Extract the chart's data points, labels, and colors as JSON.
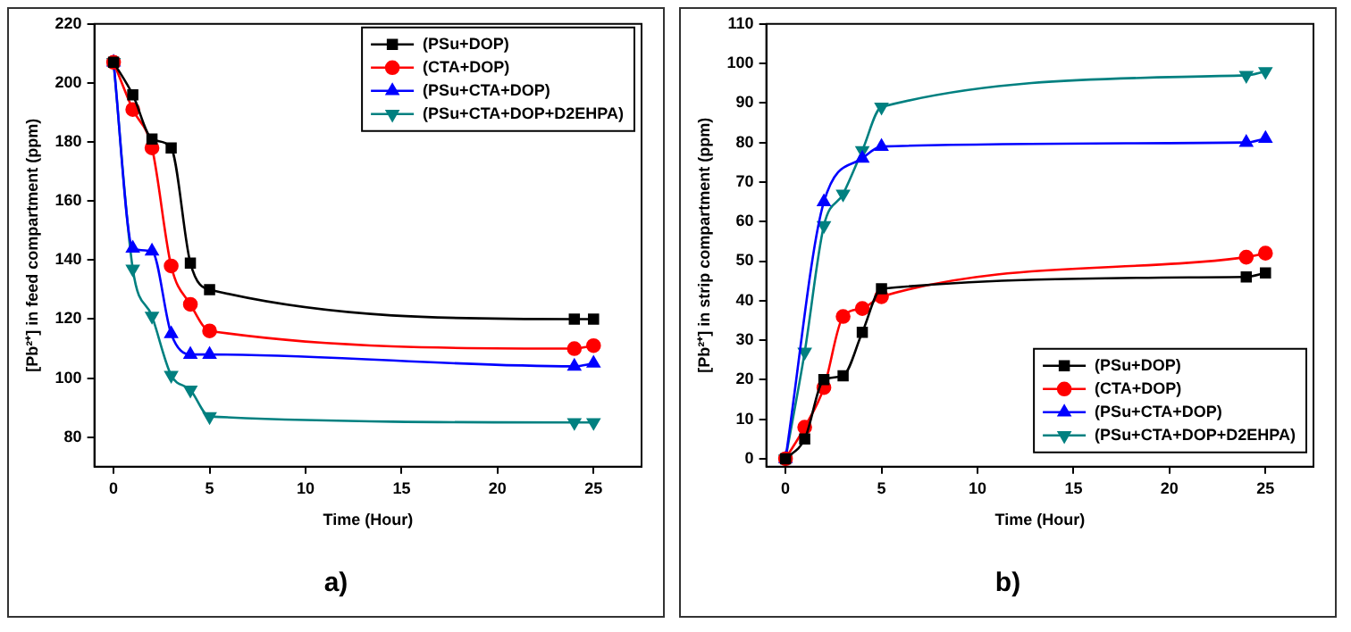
{
  "chart_data": [
    {
      "type": "line",
      "xlabel": "Time (Hour)",
      "ylabel": "[Pb²⁺] in feed compartment (ppm)",
      "x": [
        0,
        1,
        2,
        3,
        4,
        5,
        24,
        25
      ],
      "xlim": [
        -1,
        27.5
      ],
      "xticks": [
        0,
        5,
        10,
        15,
        20,
        25
      ],
      "ylim": [
        70,
        220
      ],
      "yticks": [
        80,
        100,
        120,
        140,
        160,
        180,
        200,
        220
      ],
      "grid": false,
      "legend": "top right",
      "annotations": [
        "a)"
      ],
      "series": [
        {
          "name": "(PSu+DOP)",
          "color": "#000000",
          "marker": "square",
          "values": [
            207,
            196,
            181,
            178,
            139,
            130,
            120,
            120
          ]
        },
        {
          "name": "(CTA+DOP)",
          "color": "#ff0000",
          "marker": "circle",
          "values": [
            207,
            191,
            178,
            138,
            125,
            116,
            110,
            111
          ]
        },
        {
          "name": "(PSu+CTA+DOP)",
          "color": "#0000ff",
          "marker": "triangle",
          "values": [
            207,
            144,
            143,
            115,
            108,
            108,
            104,
            105
          ]
        },
        {
          "name": "(PSu+CTA+DOP+D2EHPA)",
          "color": "#008080",
          "marker": "triangle-down",
          "values": [
            207,
            137,
            121,
            101,
            96,
            87,
            85,
            85
          ]
        }
      ]
    },
    {
      "type": "line",
      "xlabel": "Time (Hour)",
      "ylabel": "[Pb²⁺] in strip compartment (ppm)",
      "x": [
        0,
        1,
        2,
        3,
        4,
        5,
        24,
        25
      ],
      "xlim": [
        -1,
        27.5
      ],
      "xticks": [
        0,
        5,
        10,
        15,
        20,
        25
      ],
      "ylim": [
        -2,
        110
      ],
      "yticks": [
        0,
        10,
        20,
        30,
        40,
        50,
        60,
        70,
        80,
        90,
        100,
        110
      ],
      "grid": false,
      "legend": "bottom right",
      "annotations": [
        "b)"
      ],
      "series": [
        {
          "name": "(PSu+DOP)",
          "color": "#000000",
          "marker": "square",
          "values": [
            0,
            5,
            20,
            21,
            32,
            43,
            46,
            47
          ]
        },
        {
          "name": "(CTA+DOP)",
          "color": "#ff0000",
          "marker": "circle",
          "values": [
            0,
            8,
            18,
            36,
            38,
            41,
            51,
            52
          ]
        },
        {
          "name": "(PSu+CTA+DOP)",
          "color": "#0000ff",
          "marker": "triangle",
          "values": [
            0,
            null,
            65,
            null,
            76,
            79,
            80,
            81
          ]
        },
        {
          "name": "(PSu+CTA+DOP+D2EHPA)",
          "color": "#008080",
          "marker": "triangle-down",
          "values": [
            0,
            27,
            59,
            67,
            78,
            89,
            97,
            98
          ]
        }
      ]
    }
  ]
}
